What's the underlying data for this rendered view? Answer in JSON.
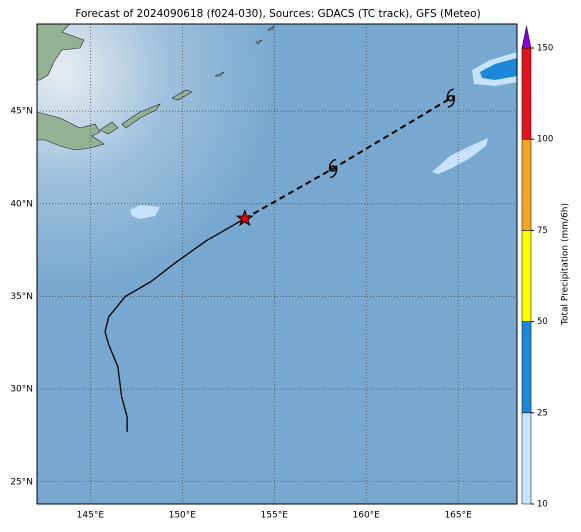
{
  "chart_data": {
    "type": "map",
    "title": "Forecast of 2024090618 (f024-030), Sources: GDACS (TC track), GFS (Meteo)",
    "xlim": [
      142.1,
      168.2
    ],
    "ylim": [
      23.8,
      49.7
    ],
    "xticks": [
      {
        "value": 145,
        "label": "145°E"
      },
      {
        "value": 150,
        "label": "150°E"
      },
      {
        "value": 155,
        "label": "155°E"
      },
      {
        "value": 160,
        "label": "160°E"
      },
      {
        "value": 165,
        "label": "165°E"
      }
    ],
    "yticks": [
      {
        "value": 25,
        "label": "25°N"
      },
      {
        "value": 30,
        "label": "30°N"
      },
      {
        "value": 35,
        "label": "35°N"
      },
      {
        "value": 40,
        "label": "40°N"
      },
      {
        "value": 45,
        "label": "45°N"
      }
    ],
    "grid": true,
    "track": {
      "lon": [
        147.0,
        147.0,
        146.7,
        146.5,
        146.0,
        145.8,
        146.0,
        146.9,
        148.3,
        149.6,
        151.3,
        153.4
      ],
      "lat": [
        27.7,
        28.5,
        29.6,
        31.2,
        32.4,
        33.1,
        33.9,
        35.0,
        35.8,
        36.8,
        38.0,
        39.2
      ],
      "color": "#000000"
    },
    "forecast": {
      "lon": [
        153.4,
        158.2,
        164.6
      ],
      "lat": [
        39.2,
        41.9,
        45.7
      ],
      "color": "#000000"
    },
    "colorbar": {
      "label": "Total Precipitation (mm/6h)",
      "levels": [
        10,
        25,
        50,
        75,
        100,
        150
      ],
      "colors": [
        "#c6e2ff",
        "#1e88d8",
        "#ffff00",
        "#f5a623",
        "#e0141e"
      ],
      "extend_color": "#8a00d4"
    }
  }
}
